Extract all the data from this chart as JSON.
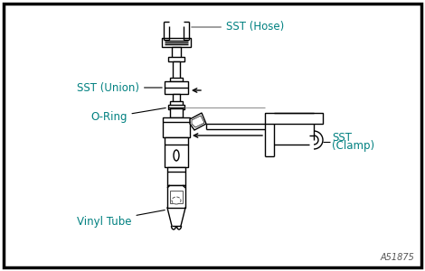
{
  "background_color": "#ffffff",
  "border_color": "#000000",
  "label_color": "#008080",
  "diagram_color": "#000000",
  "labels": {
    "sst_hose": "SST (Hose)",
    "sst_union": "SST (Union)",
    "o_ring": "O-Ring",
    "sst_clamp_line1": "SST",
    "sst_clamp_line2": "(Clamp)",
    "vinyl_tube": "Vinyl Tube",
    "code": "A51875"
  },
  "figsize": [
    4.7,
    3.0
  ],
  "dpi": 100
}
